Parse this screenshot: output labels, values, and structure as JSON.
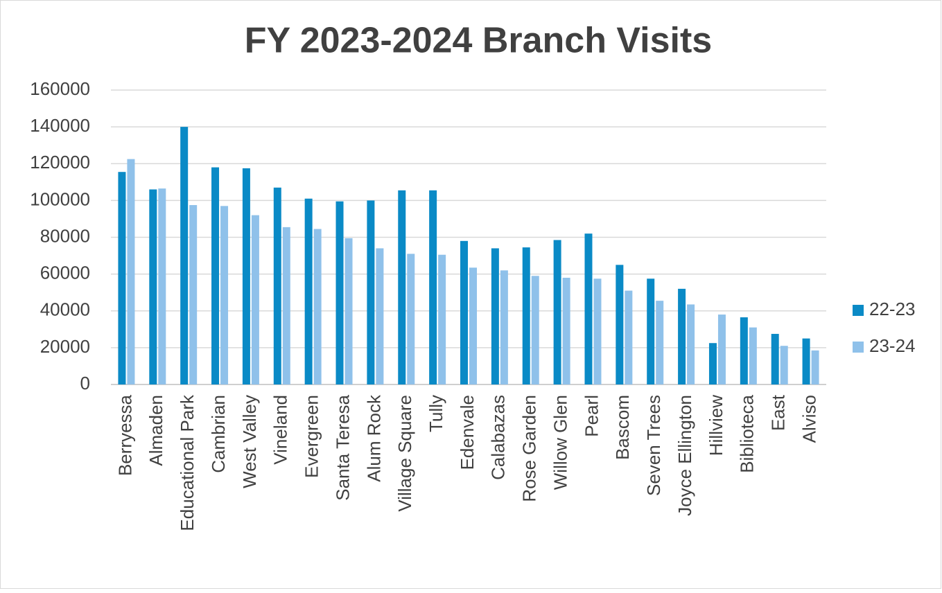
{
  "chart_data": {
    "type": "bar",
    "title": "FY 2023-2024 Branch Visits",
    "categories": [
      "Berryessa",
      "Almaden",
      "Educational Park",
      "Cambrian",
      "West Valley",
      "Vineland",
      "Evergreen",
      "Santa Teresa",
      "Alum Rock",
      "Village Square",
      "Tully",
      "Edenvale",
      "Calabazas",
      "Rose Garden",
      "Willow Glen",
      "Pearl",
      "Bascom",
      "Seven Trees",
      "Joyce Ellington",
      "Hillview",
      "Biblioteca",
      "East",
      "Alviso"
    ],
    "series": [
      {
        "name": "22-23",
        "color": "#0a8ac6",
        "values": [
          115500,
          106000,
          140000,
          118000,
          117500,
          107000,
          101000,
          99500,
          100000,
          105500,
          105500,
          78000,
          74000,
          74500,
          78500,
          82000,
          65000,
          57500,
          52000,
          22500,
          36500,
          27500,
          25000
        ]
      },
      {
        "name": "23-24",
        "color": "#8fc1ea",
        "values": [
          122500,
          106500,
          97500,
          97000,
          92000,
          85500,
          84500,
          79500,
          74000,
          71000,
          70500,
          63500,
          62000,
          59000,
          58000,
          57500,
          51000,
          45500,
          43500,
          38000,
          31000,
          21000,
          18500
        ]
      }
    ],
    "ylim": [
      0,
      160000
    ],
    "yticks": [
      0,
      20000,
      40000,
      60000,
      80000,
      100000,
      120000,
      140000,
      160000
    ],
    "grid": true,
    "legend": "right"
  }
}
